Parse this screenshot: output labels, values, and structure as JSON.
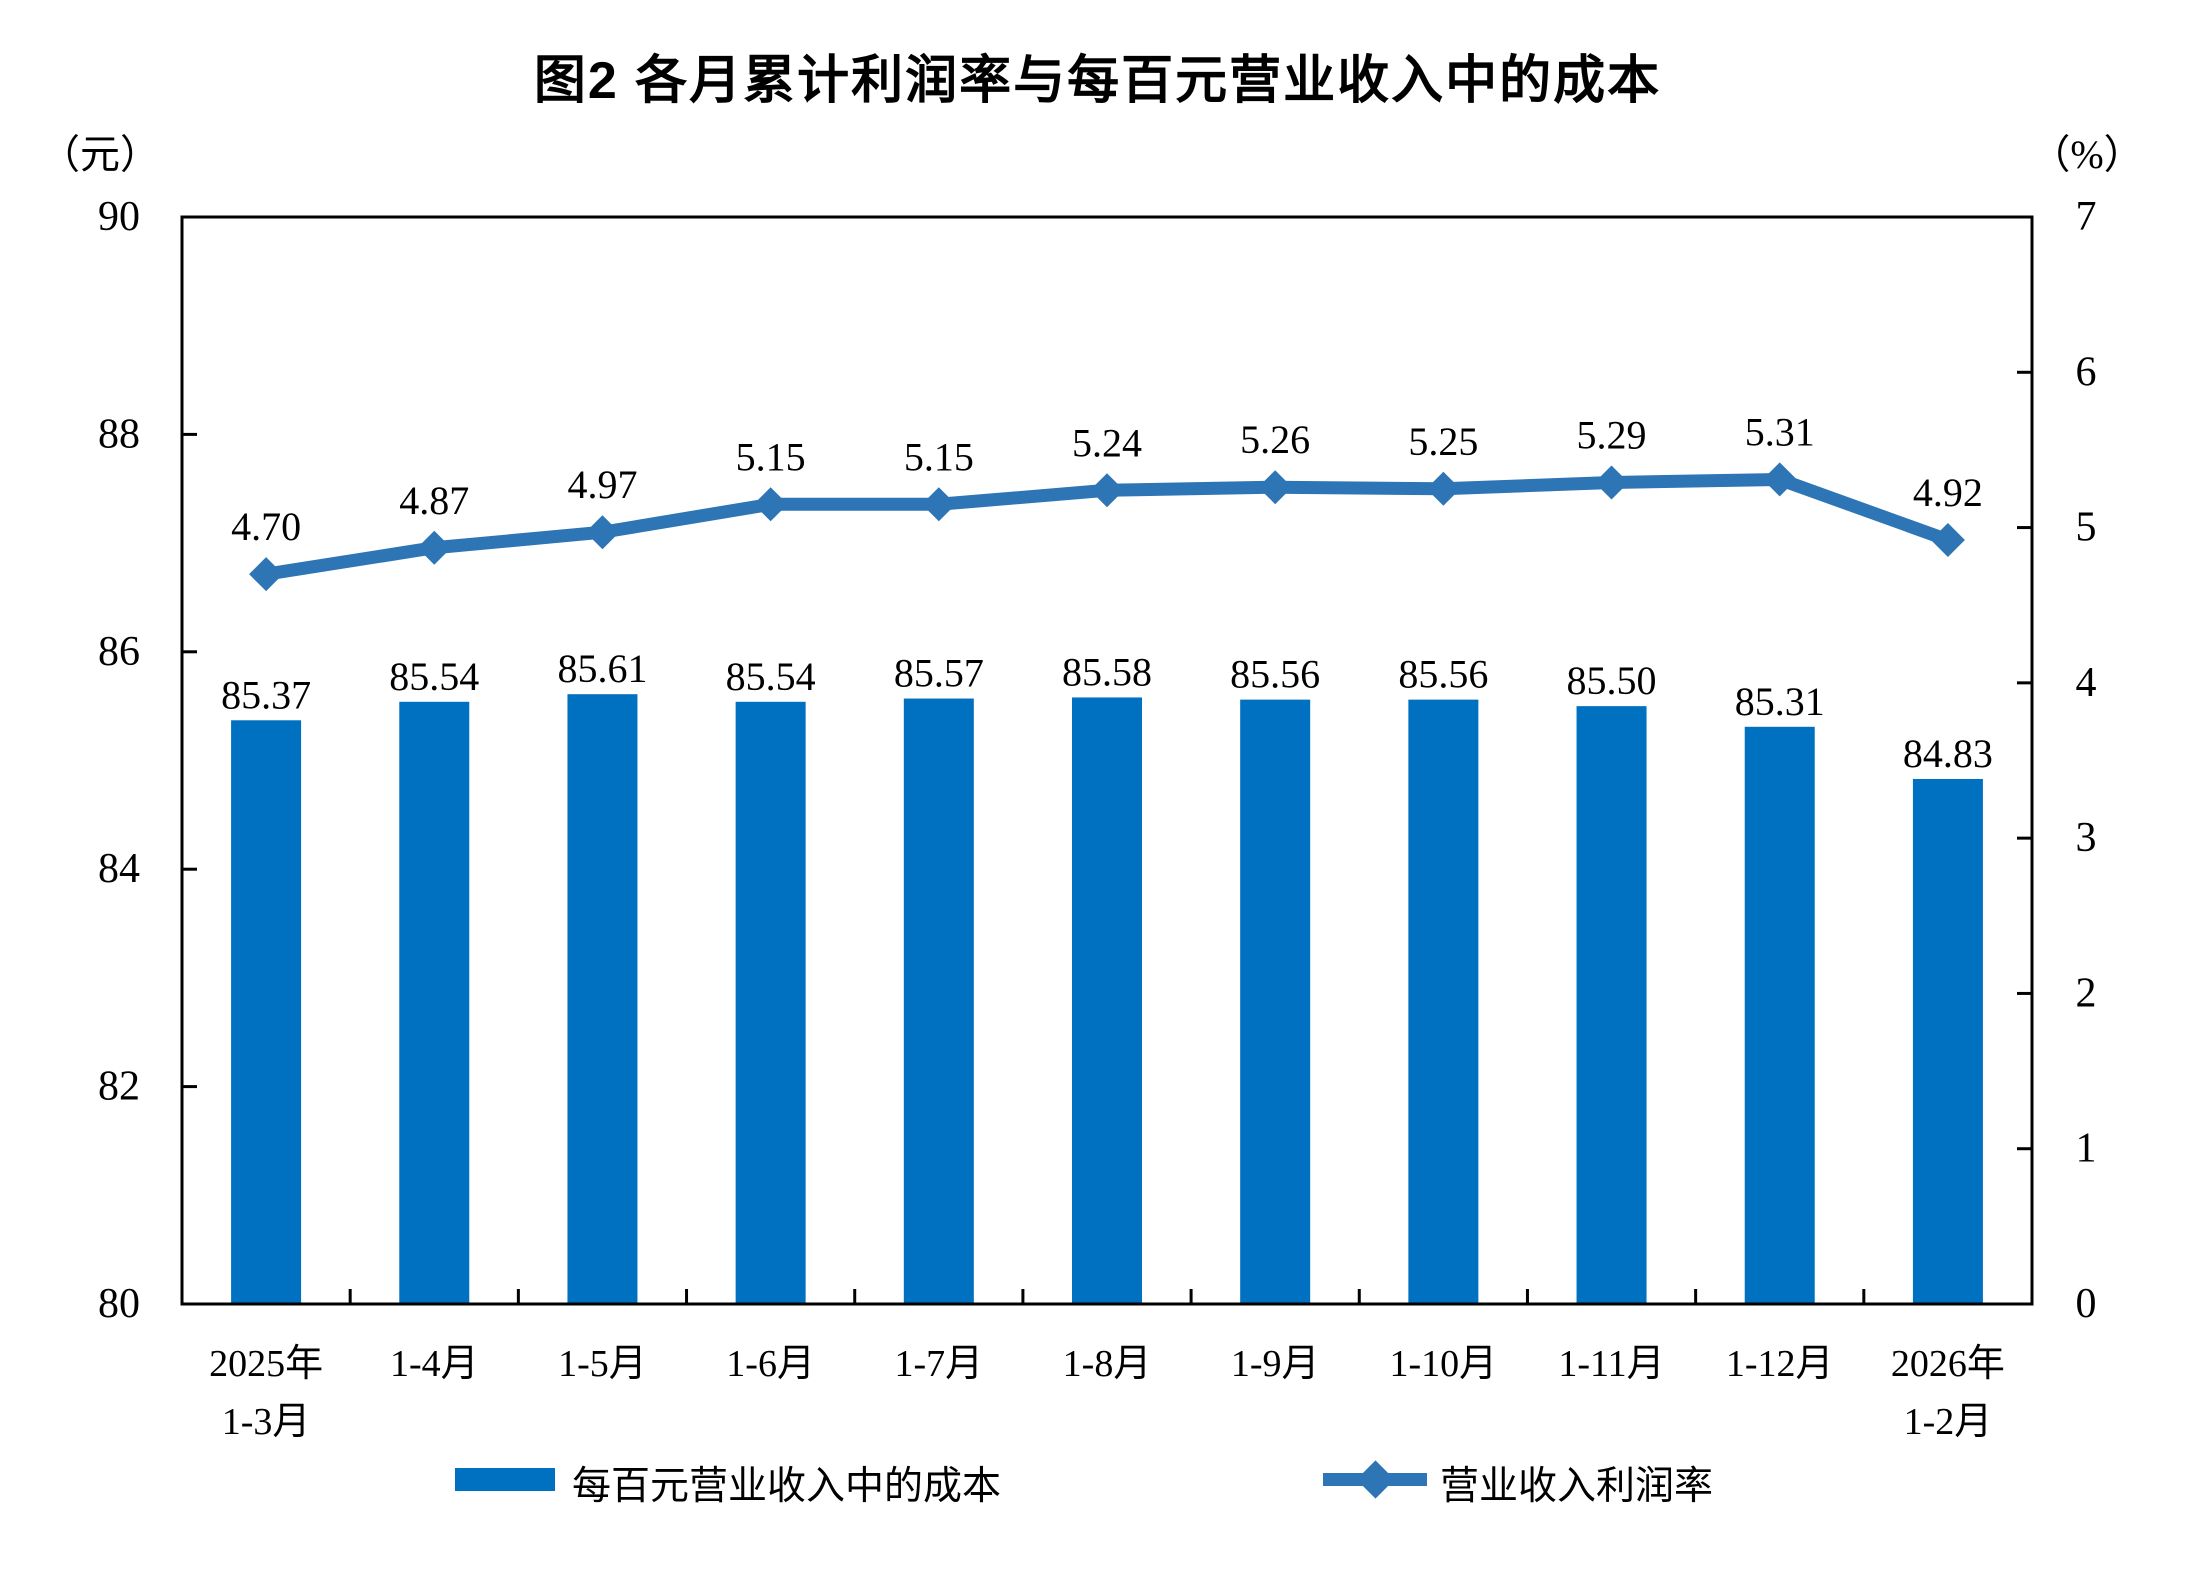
{
  "title": "图2  各月累计利润率与每百元营业收入中的成本",
  "left_axis_unit": "（元）",
  "right_axis_unit": "（%）",
  "chart_data": {
    "type": "combo-bar-line",
    "title": "图2  各月累计利润率与每百元营业收入中的成本",
    "categories": [
      "2025年\n1-3月",
      "1-4月",
      "1-5月",
      "1-6月",
      "1-7月",
      "1-8月",
      "1-9月",
      "1-10月",
      "1-11月",
      "1-12月",
      "2026年\n1-2月"
    ],
    "y_left": {
      "unit": "（元）",
      "min": 80,
      "max": 90,
      "ticks": [
        80,
        82,
        84,
        86,
        88,
        90
      ]
    },
    "y_right": {
      "unit": "（%）",
      "min": 0,
      "max": 7,
      "ticks": [
        0,
        1,
        2,
        3,
        4,
        5,
        6,
        7
      ]
    },
    "grid": false,
    "legend_position": "bottom",
    "series": [
      {
        "name": "每百元营业收入中的成本",
        "type": "bar",
        "axis": "left",
        "color": "#0070C0",
        "values": [
          85.37,
          85.54,
          85.61,
          85.54,
          85.57,
          85.58,
          85.56,
          85.56,
          85.5,
          85.31,
          84.83
        ]
      },
      {
        "name": "营业收入利润率",
        "type": "line",
        "axis": "right",
        "marker": "diamond",
        "color": "#2E75B6",
        "values": [
          4.7,
          4.87,
          4.97,
          5.15,
          5.15,
          5.24,
          5.26,
          5.25,
          5.29,
          5.31,
          4.92
        ]
      }
    ]
  }
}
